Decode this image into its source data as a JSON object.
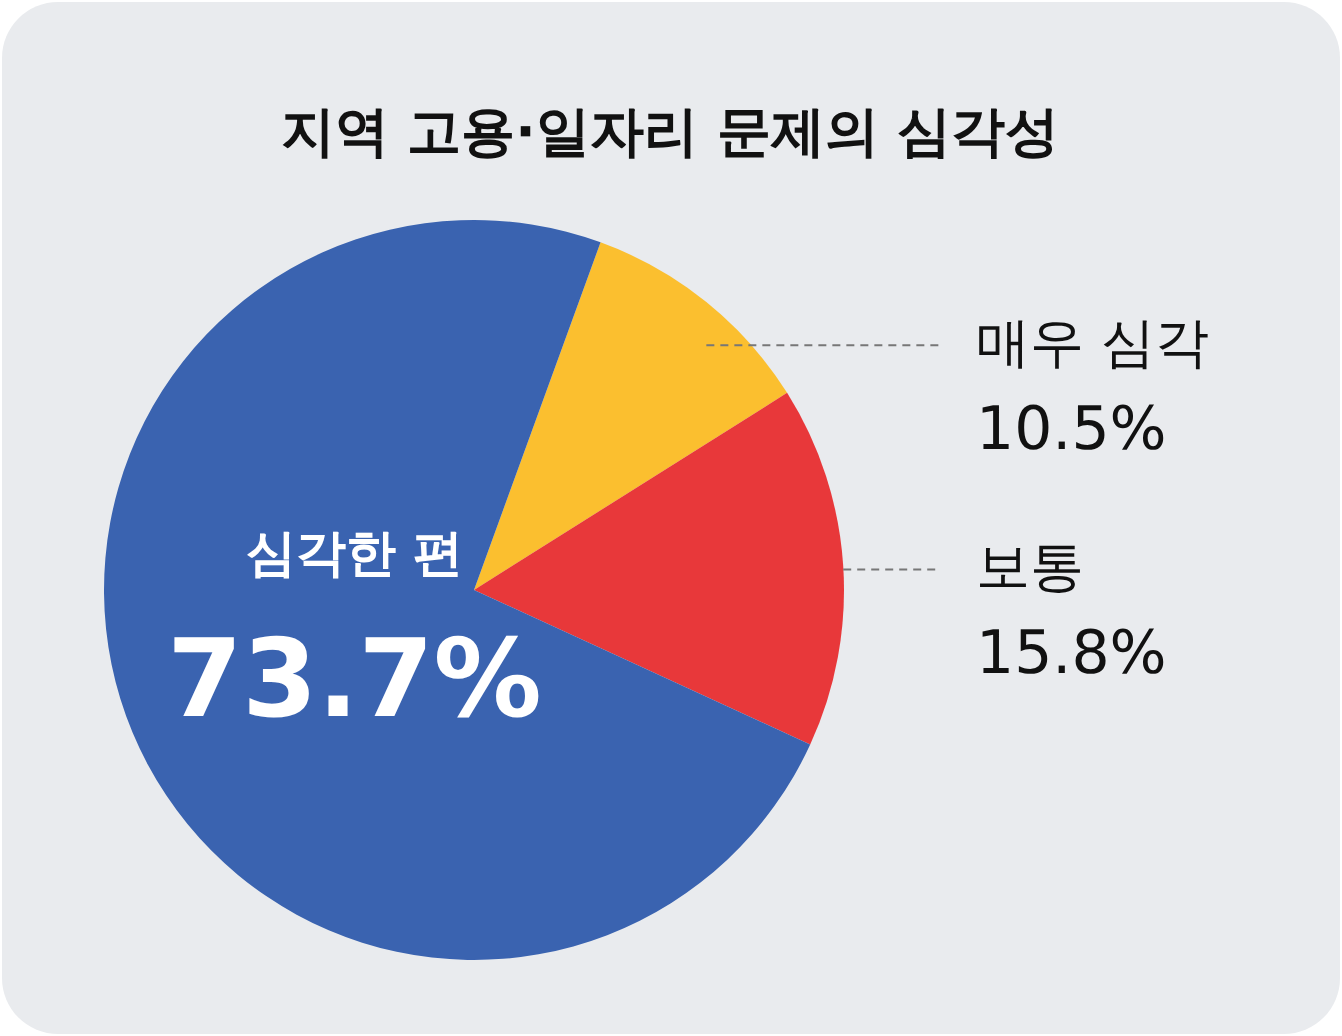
{
  "chart_data": {
    "type": "pie",
    "title": "지역 고용·일자리 문제의 심각성",
    "categories": [
      "매우 심각",
      "보통",
      "심각한 편"
    ],
    "values": [
      10.5,
      15.8,
      73.7
    ],
    "colors": [
      "#fbbf2f",
      "#e8383a",
      "#3a63b0"
    ],
    "value_labels": [
      "10.5%",
      "15.8%",
      "73.7%"
    ],
    "legend": false
  }
}
